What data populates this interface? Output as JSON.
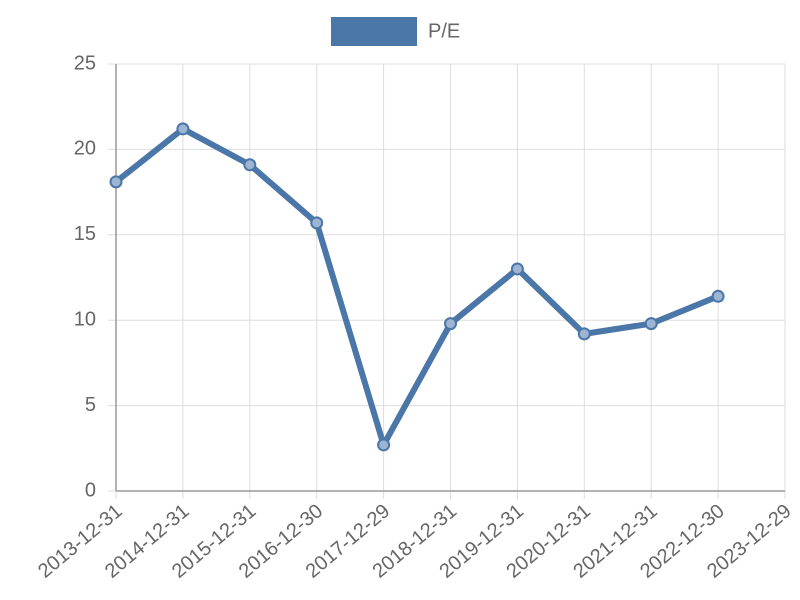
{
  "chart_data": {
    "type": "line",
    "categories": [
      "2013-12-31",
      "2014-12-31",
      "2015-12-31",
      "2016-12-30",
      "2017-12-29",
      "2018-12-31",
      "2019-12-31",
      "2020-12-31",
      "2021-12-31",
      "2022-12-30",
      "2023-12-29"
    ],
    "series": [
      {
        "name": "P/E",
        "color": "#4a76a8",
        "values": [
          18.1,
          21.2,
          19.1,
          15.7,
          2.7,
          9.8,
          13.0,
          9.2,
          9.8,
          11.4,
          null
        ]
      }
    ],
    "ylim": [
      0,
      25
    ],
    "yticks": [
      0,
      5,
      10,
      15,
      20,
      25
    ],
    "grid": true,
    "legend": "top"
  }
}
